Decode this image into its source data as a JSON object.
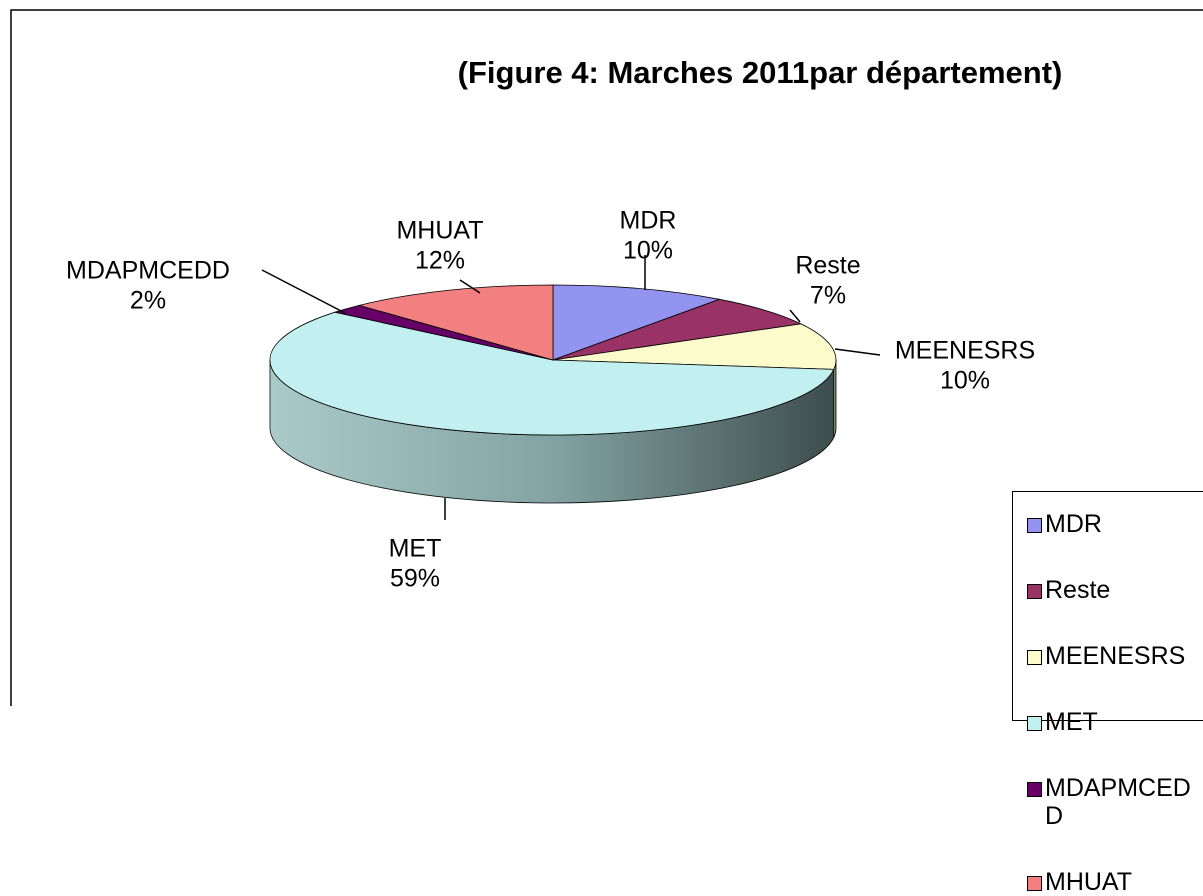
{
  "chart_data": {
    "type": "pie3d",
    "title": "(Figure 4: Marches 2011par département)",
    "categories": [
      "MDR",
      "Reste",
      "MEENESRS",
      "MET",
      "MDAPMCEDD",
      "MHUAT"
    ],
    "values": [
      10,
      7,
      10,
      59,
      2,
      12
    ],
    "value_labels": [
      "10%",
      "7%",
      "10%",
      "59%",
      "2%",
      "12%"
    ],
    "colors": [
      "#9393f0",
      "#993366",
      "#fbfbcc",
      "#c2f0f0",
      "#660066",
      "#f28080"
    ],
    "legend": "right"
  }
}
